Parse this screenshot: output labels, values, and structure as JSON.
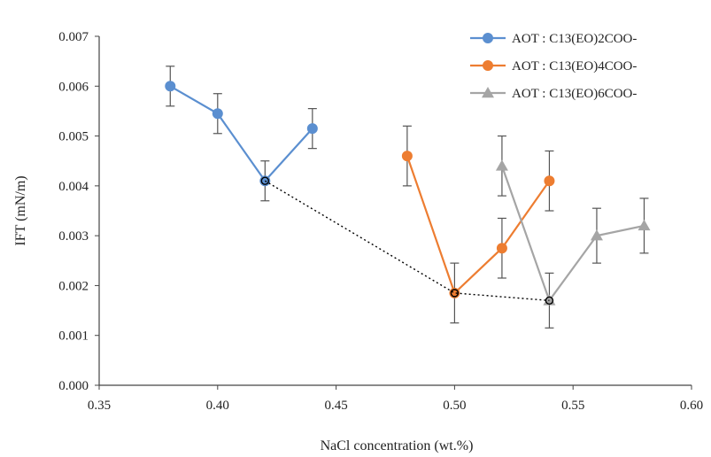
{
  "chart_data": {
    "type": "line",
    "xlabel": "NaCl concentration (wt.%)",
    "ylabel": "IFT (mN/m)",
    "xlim": [
      0.35,
      0.6
    ],
    "ylim": [
      0.0,
      0.007
    ],
    "x_ticks": [
      "0.35",
      "0.40",
      "0.45",
      "0.50",
      "0.55",
      "0.60"
    ],
    "y_ticks": [
      "0.000",
      "0.001",
      "0.002",
      "0.003",
      "0.004",
      "0.005",
      "0.006",
      "0.007"
    ],
    "grid": false,
    "legend_position": "top-right",
    "series": [
      {
        "name": "AOT : C13(EO)2COO-",
        "color": "#5b8fd0",
        "marker": "circle",
        "x": [
          0.38,
          0.4,
          0.42,
          0.44
        ],
        "y": [
          0.006,
          0.00545,
          0.0041,
          0.00515
        ],
        "error": [
          0.0004,
          0.0004,
          0.0004,
          0.0004
        ]
      },
      {
        "name": "AOT : C13(EO)4COO-",
        "color": "#ed7d31",
        "marker": "circle",
        "x": [
          0.48,
          0.5,
          0.52,
          0.54
        ],
        "y": [
          0.0046,
          0.00185,
          0.00275,
          0.0041
        ],
        "error": [
          0.0006,
          0.0006,
          0.0006,
          0.0006
        ]
      },
      {
        "name": "AOT : C13(EO)6COO-",
        "color": "#a5a5a5",
        "marker": "triangle",
        "x": [
          0.52,
          0.54,
          0.56,
          0.58
        ],
        "y": [
          0.0044,
          0.0017,
          0.003,
          0.0032
        ],
        "error": [
          0.0006,
          0.00055,
          0.00055,
          0.00055
        ]
      },
      {
        "name": "",
        "color": "#000000",
        "marker": "circle-open",
        "style": "dotted",
        "x": [
          0.42,
          0.5,
          0.54
        ],
        "y": [
          0.0041,
          0.00185,
          0.0017
        ]
      }
    ]
  }
}
